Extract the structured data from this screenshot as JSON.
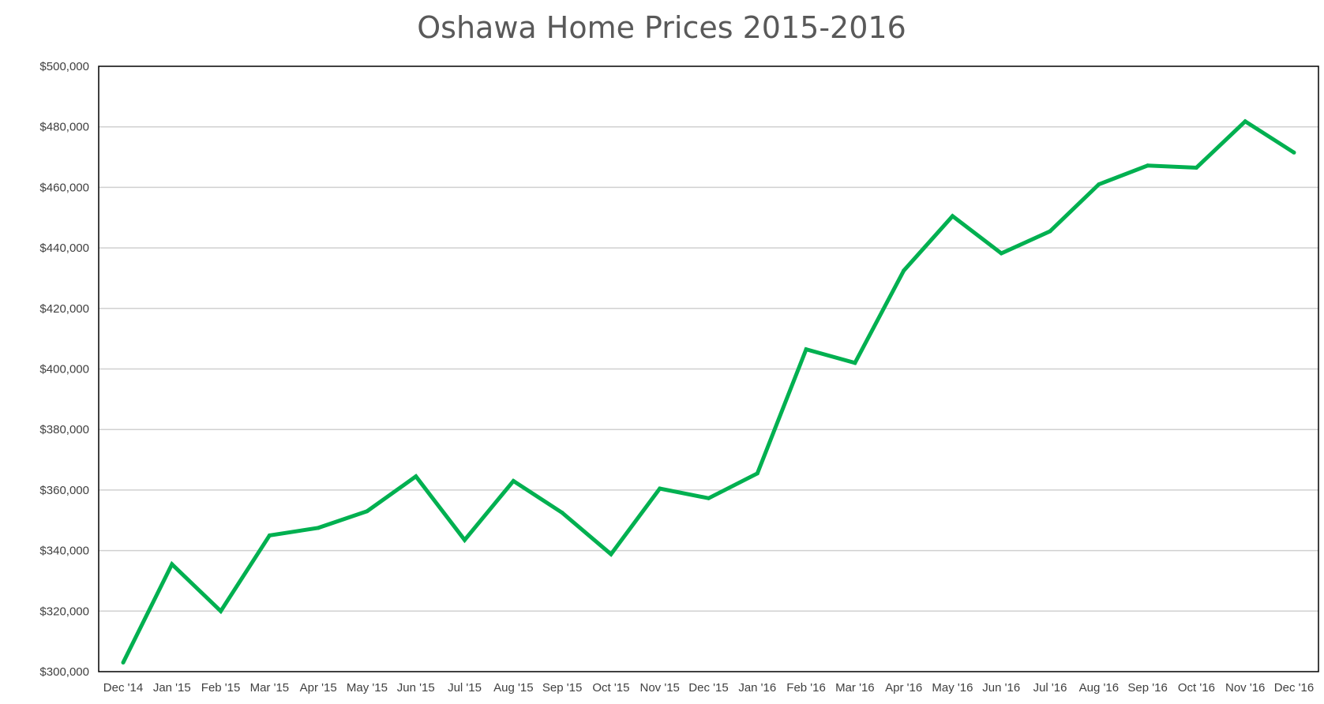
{
  "chart_data": {
    "type": "line",
    "title": "Oshawa Home Prices 2015-2016",
    "xlabel": "",
    "ylabel": "",
    "categories": [
      "Dec '14",
      "Jan '15",
      "Feb '15",
      "Mar '15",
      "Apr '15",
      "May '15",
      "Jun '15",
      "Jul '15",
      "Aug '15",
      "Sep '15",
      "Oct '15",
      "Nov '15",
      "Dec '15",
      "Jan '16",
      "Feb '16",
      "Mar '16",
      "Apr '16",
      "May '16",
      "Jun '16",
      "Jul '16",
      "Aug '16",
      "Sep '16",
      "Oct '16",
      "Nov '16",
      "Dec '16"
    ],
    "series": [
      {
        "values": [
          303000,
          335500,
          320000,
          345000,
          347500,
          353000,
          364500,
          343500,
          363000,
          352500,
          338800,
          360500,
          357300,
          365500,
          406500,
          402000,
          432500,
          450500,
          438200,
          445500,
          461000,
          467200,
          466500,
          481800,
          471500
        ],
        "color": "#00b050"
      }
    ],
    "ylim": [
      300000,
      500000
    ],
    "yticks": [
      300000,
      320000,
      340000,
      360000,
      380000,
      400000,
      420000,
      440000,
      460000,
      480000,
      500000
    ],
    "ytick_labels": [
      "$300,000",
      "$320,000",
      "$340,000",
      "$360,000",
      "$380,000",
      "$400,000",
      "$420,000",
      "$440,000",
      "$460,000",
      "$480,000",
      "$500,000"
    ],
    "grid": true,
    "legend": "none"
  }
}
